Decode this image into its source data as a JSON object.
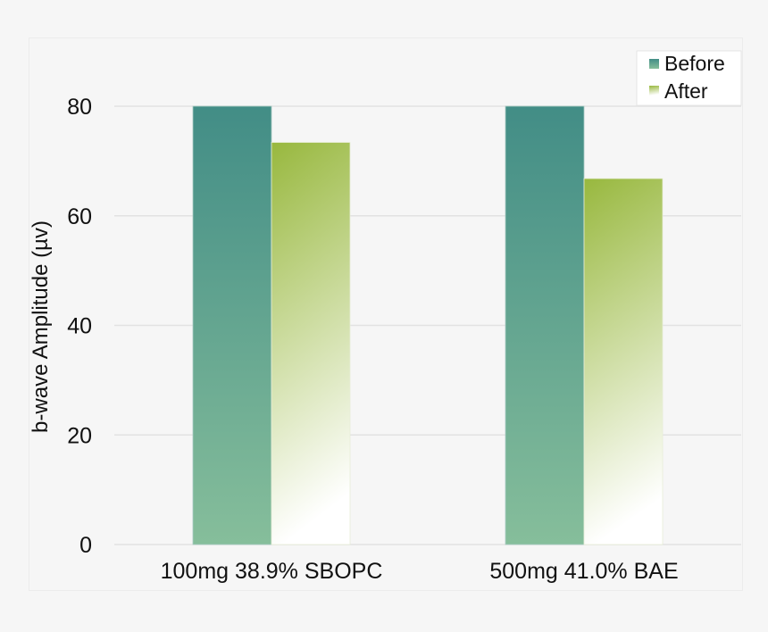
{
  "chart_data": {
    "type": "bar",
    "title": "",
    "xlabel": "",
    "ylabel": "b-wave Amplitude (µv)",
    "ylim": [
      0,
      88
    ],
    "yticks": [
      0,
      20,
      40,
      60,
      80
    ],
    "grid": true,
    "legend_position": "top-right",
    "categories": [
      "100mg 38.9% SBOPC",
      "500mg 41.0% BAE"
    ],
    "series": [
      {
        "name": "Before",
        "values": [
          80,
          80
        ],
        "color_top": "#428d86",
        "color_bottom": "#86be9b"
      },
      {
        "name": "After",
        "values": [
          73.4,
          66.8
        ],
        "color_top": "#98b83e",
        "color_bottom": "#ffffff"
      }
    ]
  }
}
